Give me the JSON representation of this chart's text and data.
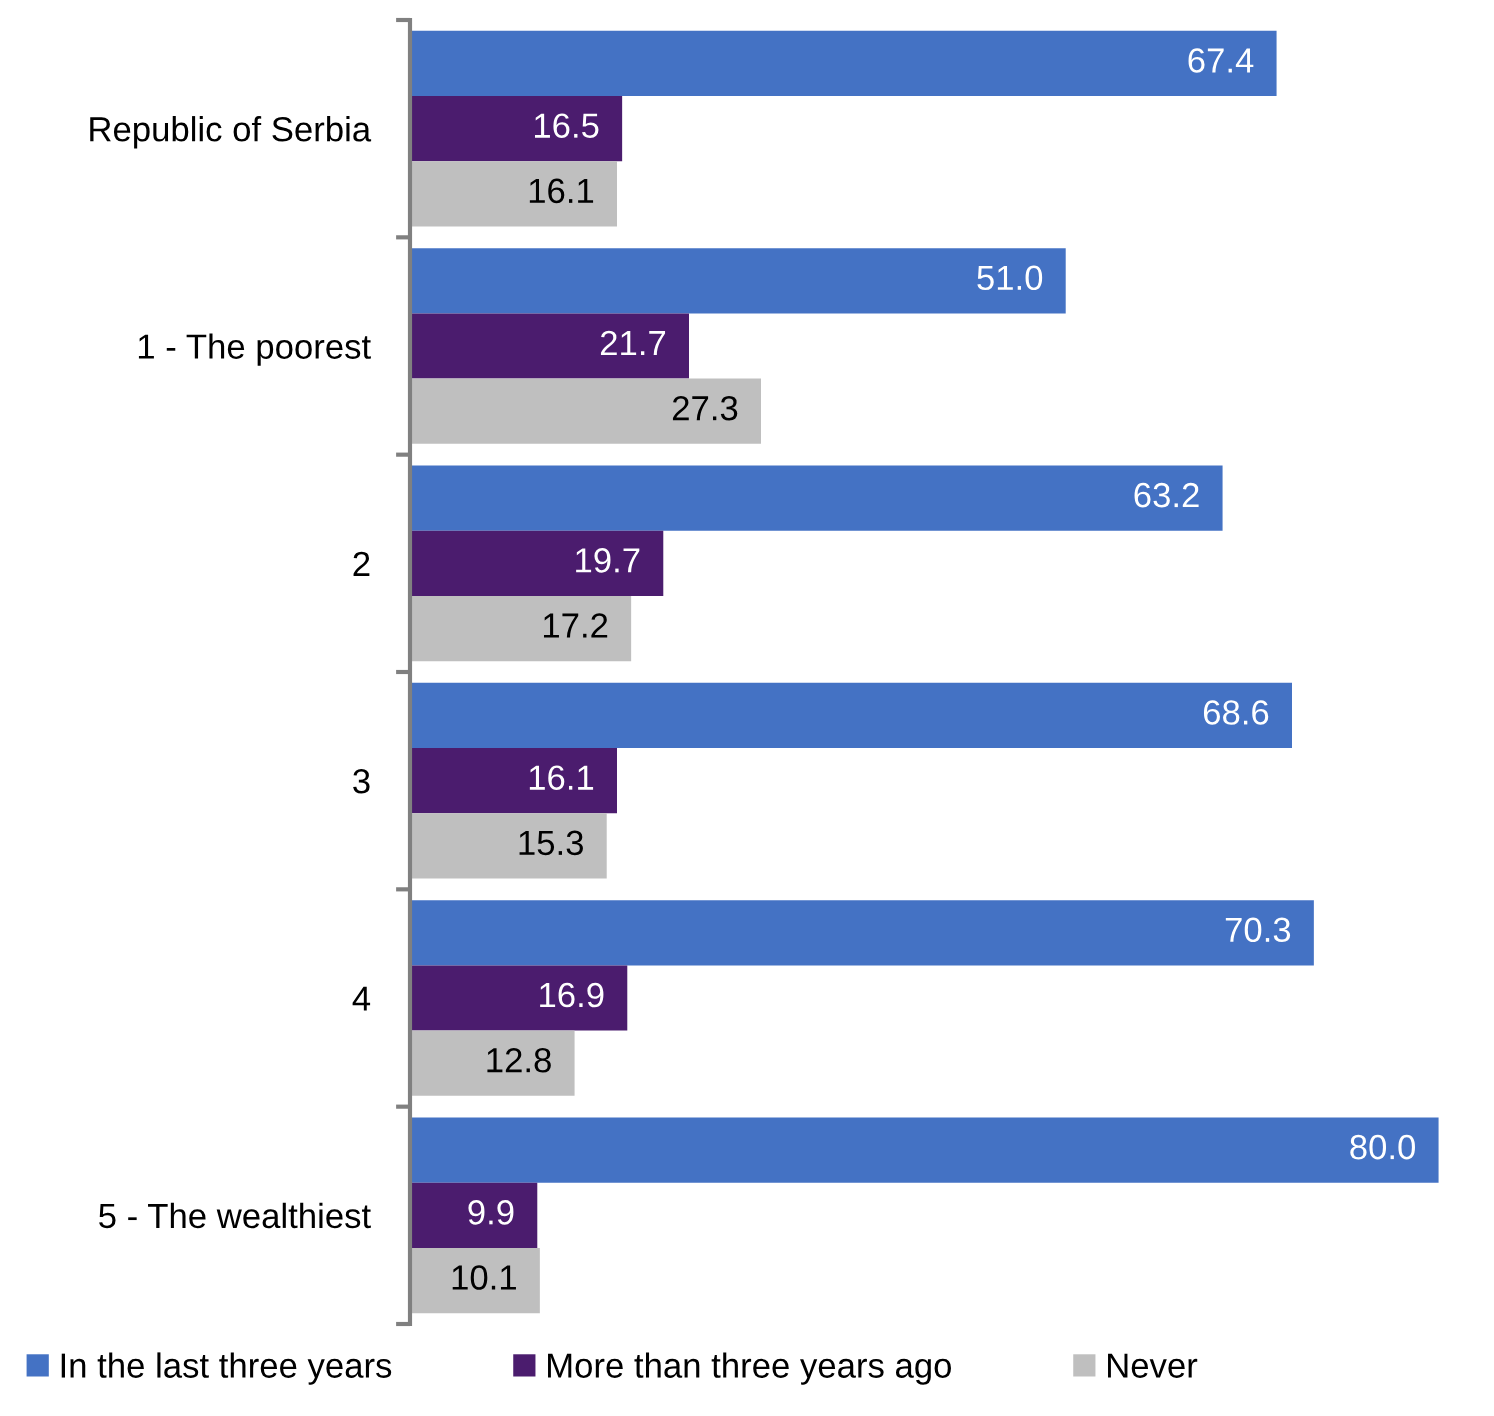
{
  "chart_data": {
    "type": "bar",
    "orientation": "horizontal",
    "categories": [
      "Republic of Serbia",
      "1 - The poorest",
      "2",
      "3",
      "4",
      "5 - The wealthiest"
    ],
    "series": [
      {
        "name": "In the last three years",
        "color": "#4472c4",
        "values": [
          67.4,
          51.0,
          63.2,
          68.6,
          70.3,
          80.0
        ],
        "value_labels": [
          "67.4",
          "51.0",
          "63.2",
          "68.6",
          "70.3",
          "80.0"
        ]
      },
      {
        "name": "More than three years ago",
        "color": "#4b1c6e",
        "values": [
          16.5,
          21.7,
          19.7,
          16.1,
          16.9,
          9.9
        ],
        "value_labels": [
          "16.5",
          "21.7",
          "19.7",
          "16.1",
          "16.9",
          "9.9"
        ]
      },
      {
        "name": "Never",
        "color": "#bfbfbf",
        "values": [
          16.1,
          27.3,
          17.2,
          15.3,
          12.8,
          10.1
        ],
        "value_labels": [
          "16.1",
          "27.3",
          "17.2",
          "15.3",
          "12.8",
          "10.1"
        ]
      }
    ],
    "grid": false,
    "legend": "bottom"
  }
}
